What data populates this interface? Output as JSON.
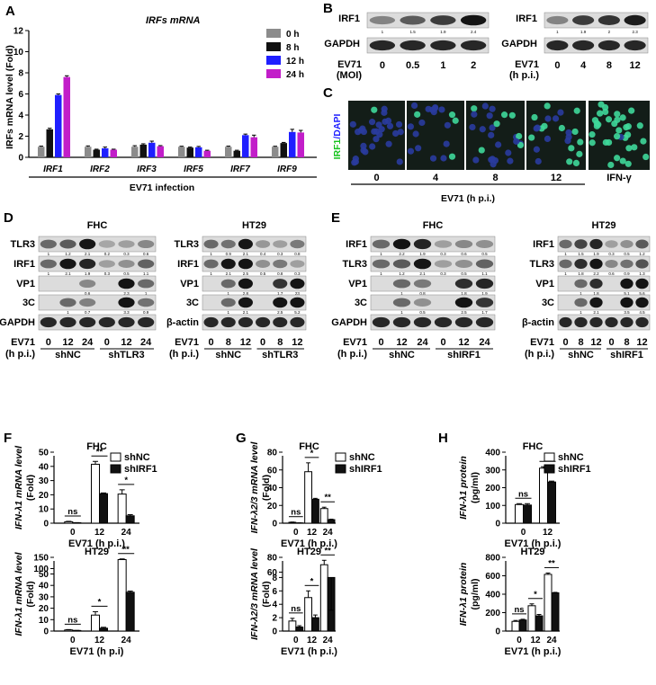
{
  "colors": {
    "h0": "#8c8c8c",
    "h8": "#111111",
    "h12": "#1f1fff",
    "h24": "#c21ec9",
    "shNC": "#ffffff",
    "shKD": "#111111",
    "micro_bg": "#131d18",
    "cell_blue": "#2a3c9e",
    "cell_green": "#3fd89a"
  },
  "panelA": {
    "label": "A",
    "title": "IRFs mRNA",
    "ylabel": "IRFs mRNA level (Fold)",
    "xlabel": "EV71 infection",
    "chart_data": {
      "type": "bar",
      "categories": [
        "IRF1",
        "IRF2",
        "IRF3",
        "IRF5",
        "IRF7",
        "IRF9"
      ],
      "series": [
        {
          "name": "0 h",
          "values": [
            1.0,
            1.0,
            1.0,
            1.0,
            1.0,
            1.0
          ],
          "err": [
            0.06,
            0.08,
            0.1,
            0.05,
            0.06,
            0.05
          ]
        },
        {
          "name": "8 h",
          "values": [
            2.65,
            0.72,
            1.2,
            0.92,
            0.62,
            1.35
          ],
          "err": [
            0.1,
            0.05,
            0.08,
            0.05,
            0.05,
            0.06
          ]
        },
        {
          "name": "12 h",
          "values": [
            5.9,
            0.85,
            1.38,
            0.95,
            2.1,
            2.4
          ],
          "err": [
            0.1,
            0.12,
            0.15,
            0.08,
            0.1,
            0.25
          ]
        },
        {
          "name": "24 h",
          "values": [
            7.6,
            0.72,
            1.05,
            0.62,
            1.9,
            2.35
          ],
          "err": [
            0.12,
            0.05,
            0.06,
            0.05,
            0.2,
            0.2
          ]
        }
      ],
      "ylim": [
        0,
        12
      ],
      "yticks": [
        "0",
        "2",
        "4",
        "6",
        "8",
        "10",
        "12"
      ]
    }
  },
  "panelB": {
    "label": "B",
    "left": {
      "rows": [
        "IRF1",
        "GAPDH"
      ],
      "quant": [
        "1",
        "1.5",
        "1.9",
        "2.4"
      ],
      "xname": "EV71",
      "xname2": "(MOI)",
      "lanes": [
        "0",
        "0.5",
        "1",
        "2"
      ]
    },
    "right": {
      "rows": [
        "IRF1",
        "GAPDH"
      ],
      "quant": [
        "1",
        "1.9",
        "2",
        "2.3"
      ],
      "xname": "EV71",
      "xname2": "(h p.i.)",
      "lanes": [
        "0",
        "4",
        "8",
        "12"
      ]
    }
  },
  "panelC": {
    "label": "C",
    "ylabel_green": "IRF1",
    "ylabel_sep": "/",
    "ylabel_blue": "DAPI",
    "times": [
      "0",
      "4",
      "8",
      "12",
      "IFN-γ"
    ],
    "xlabel": "EV71 (h p.i.)"
  },
  "panelD": {
    "label": "D",
    "left": {
      "title": "FHC",
      "rows": [
        "TLR3",
        "IRF1",
        "VP1",
        "3C",
        "GAPDH"
      ],
      "quant": [
        [
          "1",
          "1.2",
          "2.1",
          "0.2",
          "0.3",
          "0.6"
        ],
        [
          "1",
          "2.1",
          "1.9",
          "0.3",
          "0.5",
          "1.1"
        ],
        [
          "",
          "",
          "0.6",
          "",
          "2.3",
          "1"
        ],
        [
          "",
          "1",
          "0.7",
          "",
          "3.3",
          "0.9"
        ]
      ],
      "evlabel": "EV71",
      "hp": "(h p.i.)",
      "lanes": [
        "0",
        "12",
        "24",
        "0",
        "12",
        "24"
      ],
      "groups": [
        "shNC",
        "shTLR3"
      ]
    },
    "right": {
      "title": "HT29",
      "rows": [
        "TLR3",
        "IRF1",
        "VP1",
        "3C",
        "β-actin"
      ],
      "quant": [
        [
          "1",
          "0.9",
          "2.1",
          "0.4",
          "0.3",
          "0.8"
        ],
        [
          "1",
          "2.1",
          "2.5",
          "0.5",
          "0.8",
          "0.3"
        ],
        [
          "",
          "1",
          "2.8",
          "",
          "1.7",
          "23"
        ],
        [
          "",
          "1",
          "2.1",
          "",
          "2.5",
          "5.2"
        ]
      ],
      "evlabel": "EV71",
      "hp": "(h p.i.)",
      "lanes": [
        "0",
        "8",
        "12",
        "0",
        "8",
        "12"
      ],
      "groups": [
        "shNC",
        "shTLR3"
      ]
    }
  },
  "panelE": {
    "label": "E",
    "left": {
      "title": "FHC",
      "rows": [
        "IRF1",
        "TLR3",
        "VP1",
        "3C",
        "GAPDH"
      ],
      "quant": [
        [
          "1",
          "2.2",
          "1.9",
          "0.3",
          "0.6",
          "0.5"
        ],
        [
          "1",
          "1.2",
          "2.1",
          "0.3",
          "0.5",
          "1.1"
        ],
        [
          "",
          "1",
          "0.8",
          "",
          "1.8",
          "1.9"
        ],
        [
          "",
          "1",
          "0.5",
          "",
          "2.5",
          "1.7"
        ]
      ],
      "evlabel": "EV71",
      "hp": "(h p.i.)",
      "lanes": [
        "0",
        "12",
        "24",
        "0",
        "12",
        "24"
      ],
      "groups": [
        "shNC",
        "shIRF1"
      ]
    },
    "right": {
      "title": "HT29",
      "rows": [
        "IRF1",
        "TLR3",
        "VP1",
        "3C",
        "β-actin"
      ],
      "quant": [
        [
          "1",
          "1.5",
          "1.9",
          "0.3",
          "0.5",
          "1.2"
        ],
        [
          "1",
          "1.8",
          "2.2",
          "0.6",
          "0.9",
          "1.3"
        ],
        [
          "",
          "1",
          "1.8",
          "",
          "5.1",
          "5.6"
        ],
        [
          "",
          "1",
          "2.1",
          "",
          "3.5",
          "4.5"
        ]
      ],
      "evlabel": "EV71",
      "hp": "(h p.i.)",
      "lanes": [
        "0",
        "8",
        "12",
        "0",
        "8",
        "12"
      ],
      "groups": [
        "shNC",
        "shIRF1"
      ]
    }
  },
  "panelF": {
    "label": "F",
    "legend": [
      "shNC",
      "shIRF1"
    ],
    "ylabel": "IFN-λ1 mRNA level",
    "yunit": "(Fold)",
    "top": {
      "title": "FHC",
      "xlabel": "EV71 (h p.i.)",
      "chart_data": {
        "type": "bar",
        "categories": [
          "0",
          "12",
          "24"
        ],
        "series": [
          {
            "name": "shNC",
            "values": [
              1,
              41.5,
              20.5
            ],
            "err": [
              0.3,
              2,
              3
            ]
          },
          {
            "name": "shIRF1",
            "values": [
              0.3,
              20.8,
              5.2
            ],
            "err": [
              0.1,
              0.5,
              0.8
            ]
          }
        ],
        "ylim": [
          0,
          50
        ],
        "yticks": [
          "0",
          "10",
          "20",
          "30",
          "40",
          "50"
        ],
        "sig": [
          "ns",
          "**",
          "*"
        ]
      }
    },
    "bottom": {
      "title": "HT29",
      "xlabel": "EV71 (h p.i)",
      "chart_data": {
        "type": "bar",
        "categories": [
          "0",
          "12",
          "24"
        ],
        "series": [
          {
            "name": "shNC",
            "values": [
              1,
              14,
              140
            ],
            "err": [
              0.3,
              3,
              3
            ]
          },
          {
            "name": "shIRF1",
            "values": [
              0.5,
              2.5,
              34
            ],
            "err": [
              0.1,
              0.8,
              1
            ]
          }
        ],
        "ylim": [
          0,
          150
        ],
        "yticks": [
          "0",
          "10",
          "20",
          "30",
          "40",
          "50",
          "100",
          "150"
        ],
        "sig": [
          "ns",
          "*",
          "**"
        ]
      }
    }
  },
  "panelG": {
    "label": "G",
    "legend": [
      "shNC",
      "shIRF1"
    ],
    "ylabel": "IFN-λ2/3 mRNA level",
    "yunit": "(Fold)",
    "top": {
      "title": "FHC",
      "xlabel": "EV71 (h p.i.)",
      "chart_data": {
        "type": "bar",
        "categories": [
          "0",
          "12",
          "24"
        ],
        "series": [
          {
            "name": "shNC",
            "values": [
              1,
              58,
              16.5
            ],
            "err": [
              0.3,
              10,
              1.5
            ]
          },
          {
            "name": "shIRF1",
            "values": [
              0.3,
              27,
              4
            ],
            "err": [
              0.1,
              1,
              0.5
            ]
          }
        ],
        "ylim": [
          0,
          80
        ],
        "yticks": [
          "0",
          "20",
          "40",
          "60",
          "80"
        ],
        "sig": [
          "ns",
          "*",
          "**"
        ]
      }
    },
    "bottom": {
      "title": "HT29",
      "xlabel": "EV71 (h p.i.)",
      "chart_data": {
        "type": "bar",
        "categories": [
          "0",
          "12",
          "24"
        ],
        "series": [
          {
            "name": "shNC",
            "values": [
              1.5,
              5,
              70
            ],
            "err": [
              0.4,
              1,
              6
            ]
          },
          {
            "name": "shIRF1",
            "values": [
              0.6,
              2,
              8
            ],
            "err": [
              0.2,
              0.4,
              0.3
            ]
          }
        ],
        "ylim": [
          0,
          80
        ],
        "yticks": [
          "0",
          "2",
          "4",
          "6",
          "8",
          "60",
          "80"
        ],
        "sig": [
          "ns",
          "*",
          "**"
        ]
      }
    }
  },
  "panelH": {
    "label": "H",
    "legend": [
      "shNC",
      "shIRF1"
    ],
    "ylabel": "IFN-λ1 protein",
    "yunit": "(pg/ml)",
    "top": {
      "title": "FHC",
      "xlabel": "EV71 (h p.i.)",
      "chart_data": {
        "type": "bar",
        "categories": [
          "0",
          "12"
        ],
        "series": [
          {
            "name": "shNC",
            "values": [
              105,
              310
            ],
            "err": [
              5,
              8
            ]
          },
          {
            "name": "shIRF1",
            "values": [
              102,
              232
            ],
            "err": [
              8,
              5
            ]
          }
        ],
        "ylim": [
          0,
          400
        ],
        "yticks": [
          "0",
          "100",
          "200",
          "300",
          "400"
        ],
        "sig": [
          "ns",
          "**"
        ]
      }
    },
    "bottom": {
      "title": "HT29",
      "xlabel": "EV71 (h p.i.)",
      "chart_data": {
        "type": "bar",
        "categories": [
          "0",
          "12",
          "24"
        ],
        "series": [
          {
            "name": "shNC",
            "values": [
              105,
              275,
              615
            ],
            "err": [
              10,
              20,
              15
            ]
          },
          {
            "name": "shIRF1",
            "values": [
              120,
              165,
              415
            ],
            "err": [
              8,
              15,
              5
            ]
          }
        ],
        "ylim": [
          0,
          800
        ],
        "yticks": [
          "0",
          "200",
          "400",
          "600",
          "800"
        ],
        "sig": [
          "ns",
          "*",
          "**"
        ]
      }
    }
  }
}
